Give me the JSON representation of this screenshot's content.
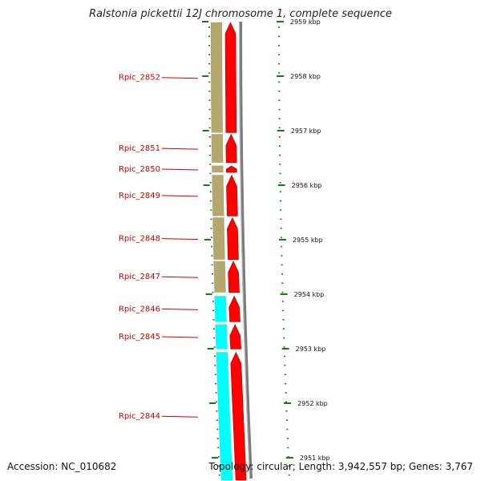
{
  "title": "Ralstonia pickettii 12J chromosome 1, complete sequence",
  "accession_text": "Accession: NC_010682",
  "summary_text": "Topology: circular; Length: 3,942,557 bp; Genes: 3,767",
  "colors": {
    "gene_label": "#cc0000",
    "cds_forward": "#ff0000",
    "cds_outline": "#b00000",
    "cog_khaki": "#b5a86e",
    "cog_cyan": "#00ffff",
    "backbone": "#7a7a7a",
    "tick": "#1a7a1a"
  },
  "ruler": {
    "unit": "kbp",
    "ticks": [
      {
        "value": 2959,
        "label": "2959 kbp"
      },
      {
        "value": 2958,
        "label": "2958 kbp"
      },
      {
        "value": 2957,
        "label": "2957 kbp"
      },
      {
        "value": 2956,
        "label": "2956 kbp"
      },
      {
        "value": 2955,
        "label": "2955 kbp"
      },
      {
        "value": 2954,
        "label": "2954 kbp"
      },
      {
        "value": 2953,
        "label": "2953 kbp"
      },
      {
        "value": 2952,
        "label": "2952 kbp"
      },
      {
        "value": 2951,
        "label": "2951 kbp"
      }
    ]
  },
  "genes": [
    {
      "name": "Rpic_2852",
      "start_kbp": 2956.95,
      "end_kbp": 2959.1,
      "cog_color": "khaki"
    },
    {
      "name": "Rpic_2851",
      "start_kbp": 2956.4,
      "end_kbp": 2956.95,
      "cog_color": "khaki"
    },
    {
      "name": "Rpic_2850",
      "start_kbp": 2956.22,
      "end_kbp": 2956.37,
      "cog_color": "khaki"
    },
    {
      "name": "Rpic_2849",
      "start_kbp": 2955.42,
      "end_kbp": 2956.2,
      "cog_color": "khaki"
    },
    {
      "name": "Rpic_2848",
      "start_kbp": 2954.62,
      "end_kbp": 2955.42,
      "cog_color": "khaki"
    },
    {
      "name": "Rpic_2847",
      "start_kbp": 2954.02,
      "end_kbp": 2954.62,
      "cog_color": "khaki"
    },
    {
      "name": "Rpic_2846",
      "start_kbp": 2953.48,
      "end_kbp": 2953.98,
      "cog_color": "cyan"
    },
    {
      "name": "Rpic_2845",
      "start_kbp": 2952.98,
      "end_kbp": 2953.46,
      "cog_color": "cyan"
    },
    {
      "name": "Rpic_2844",
      "start_kbp": 2950.5,
      "end_kbp": 2952.95,
      "cog_color": "cyan"
    }
  ]
}
